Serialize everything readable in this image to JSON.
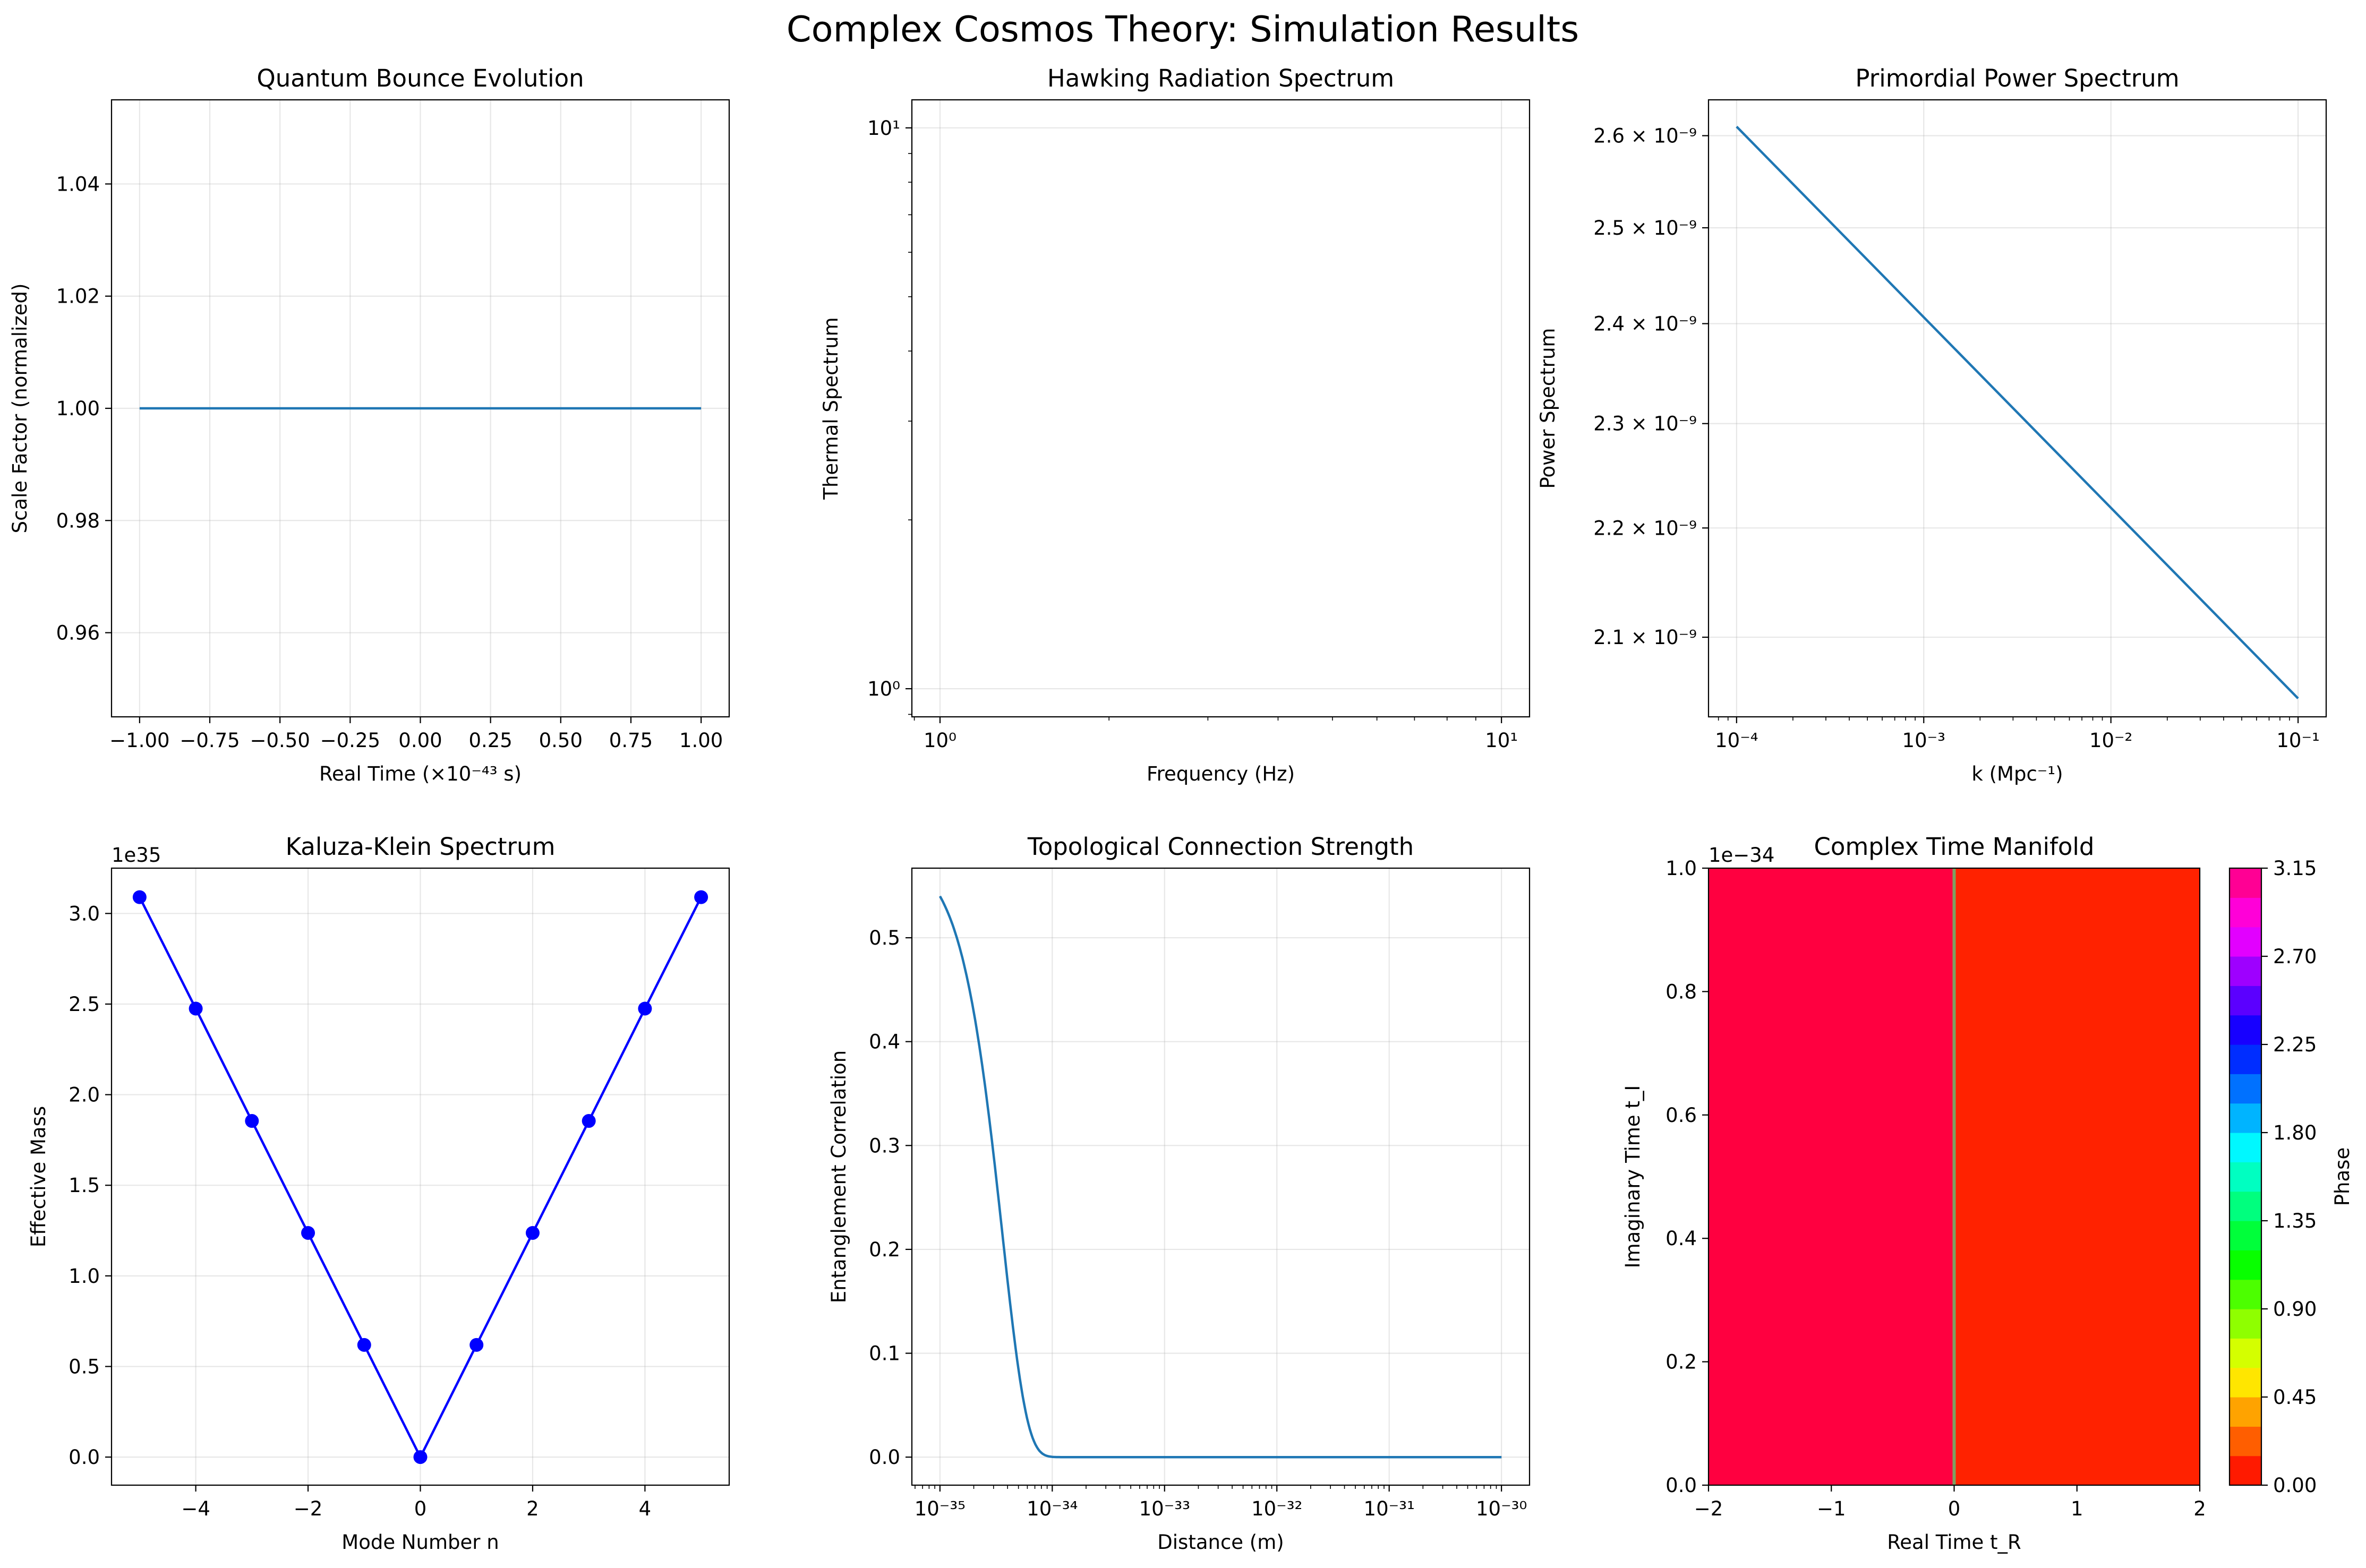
{
  "figure_title": "Complex Cosmos Theory: Simulation Results",
  "colors": {
    "line": "#1f77b4",
    "markers": "#0000ff",
    "grid": "#b0b0b0"
  },
  "chart_data": [
    {
      "type": "line",
      "title": "Quantum Bounce Evolution",
      "xlabel": "Real Time (×10⁻⁴³ s)",
      "ylabel": "Scale Factor (normalized)",
      "xlim": [
        -1.1,
        1.1
      ],
      "ylim": [
        0.945,
        1.055
      ],
      "xticks": [
        -1.0,
        -0.75,
        -0.5,
        -0.25,
        0.0,
        0.25,
        0.5,
        0.75,
        1.0
      ],
      "xtick_labels": [
        "−1.00",
        "−0.75",
        "−0.50",
        "−0.25",
        "0.00",
        "0.25",
        "0.50",
        "0.75",
        "1.00"
      ],
      "yticks": [
        0.96,
        0.98,
        1.0,
        1.02,
        1.04
      ],
      "ytick_labels": [
        "0.96",
        "0.98",
        "1.00",
        "1.02",
        "1.04"
      ],
      "grid": true,
      "series": [
        {
          "x": [
            -1.0,
            1.0
          ],
          "y": [
            1.0,
            1.0
          ]
        }
      ]
    },
    {
      "type": "line",
      "title": "Hawking Radiation Spectrum",
      "xlabel": "Frequency (Hz)",
      "ylabel": "Thermal Spectrum",
      "xscale": "log",
      "yscale": "log",
      "xlim": [
        0.891,
        11.22
      ],
      "ylim": [
        0.891,
        11.22
      ],
      "xticks": [
        1,
        10
      ],
      "xtick_labels": [
        "10⁰",
        "10¹"
      ],
      "yticks": [
        1,
        10
      ],
      "ytick_labels": [
        "10⁰",
        "10¹"
      ],
      "grid": true,
      "series": []
    },
    {
      "type": "line",
      "title": "Primordial Power Spectrum",
      "xlabel": "k (Mpc⁻¹)",
      "ylabel": "Power Spectrum",
      "xscale": "log",
      "yscale": "log",
      "xlim": [
        7.08e-05,
        0.1413
      ],
      "ylim": [
        2.03e-09,
        2.64e-09
      ],
      "xticks": [
        0.0001,
        0.001,
        0.01,
        0.1
      ],
      "xtick_labels": [
        "10⁻⁴",
        "10⁻³",
        "10⁻²",
        "10⁻¹"
      ],
      "yticks": [
        2.1e-09,
        2.2e-09,
        2.3e-09,
        2.4e-09,
        2.5e-09,
        2.6e-09
      ],
      "ytick_labels": [
        "2.1 × 10⁻⁹",
        "2.2 × 10⁻⁹",
        "2.3 × 10⁻⁹",
        "2.4 × 10⁻⁹",
        "2.5 × 10⁻⁹",
        "2.6 × 10⁻⁹"
      ],
      "grid": true,
      "series": [
        {
          "x": [
            0.0001,
            0.1
          ],
          "y": [
            2.61e-09,
            2.046e-09
          ]
        }
      ]
    },
    {
      "type": "line",
      "title": "Kaluza-Klein Spectrum",
      "xlabel": "Mode Number n",
      "ylabel": "Effective Mass",
      "offset_label": "1e35",
      "xlim": [
        -5.5,
        5.5
      ],
      "ylim": [
        -0.155,
        3.25
      ],
      "xticks": [
        -4,
        -2,
        0,
        2,
        4
      ],
      "xtick_labels": [
        "−4",
        "−2",
        "0",
        "2",
        "4"
      ],
      "yticks": [
        0.0,
        0.5,
        1.0,
        1.5,
        2.0,
        2.5,
        3.0
      ],
      "ytick_labels": [
        "0.0",
        "0.5",
        "1.0",
        "1.5",
        "2.0",
        "2.5",
        "3.0"
      ],
      "grid": true,
      "series": [
        {
          "x": [
            -5,
            -4,
            -3,
            -2,
            -1,
            0,
            1,
            2,
            3,
            4,
            5
          ],
          "y": [
            3.09,
            2.475,
            1.855,
            1.237,
            0.619,
            0.0,
            0.619,
            1.237,
            1.855,
            2.475,
            3.09
          ],
          "markers": true
        }
      ]
    },
    {
      "type": "line",
      "title": "Topological Connection Strength",
      "xlabel": "Distance (m)",
      "ylabel": "Entanglement Correlation",
      "xscale": "log",
      "xlim": [
        5.623e-36,
        1.778e-30
      ],
      "ylim": [
        -0.027,
        0.567
      ],
      "xticks": [
        1e-35,
        1e-34,
        1e-33,
        1e-32,
        1e-31,
        1e-30
      ],
      "xtick_labels": [
        "10⁻³⁵",
        "10⁻³⁴",
        "10⁻³³",
        "10⁻³²",
        "10⁻³¹",
        "10⁻³⁰"
      ],
      "yticks": [
        0.0,
        0.1,
        0.2,
        0.3,
        0.4,
        0.5
      ],
      "ytick_labels": [
        "0.0",
        "0.1",
        "0.2",
        "0.3",
        "0.4",
        "0.5"
      ],
      "grid": true,
      "series": [
        {
          "x": [
            1e-35,
            1.2e-35,
            1.5e-35,
            2e-35,
            2.5e-35,
            3e-35,
            4e-35,
            5e-35,
            6e-35,
            7e-35,
            8e-35,
            1e-34,
            1.5e-34,
            1e-33,
            1e-32,
            1e-31,
            1e-30
          ],
          "y": [
            0.54,
            0.49,
            0.42,
            0.315,
            0.225,
            0.155,
            0.07,
            0.03,
            0.012,
            0.005,
            0.002,
            0.0003,
            0.0,
            0.0,
            0.0,
            0.0,
            0.0
          ]
        }
      ]
    },
    {
      "type": "heatmap",
      "title": "Complex Time Manifold",
      "xlabel": "Real Time t_R",
      "ylabel": "Imaginary Time t_I",
      "offset_label": "1e−34",
      "xlim": [
        -2,
        2
      ],
      "ylim": [
        0.0,
        1.0
      ],
      "xticks": [
        -2,
        -1,
        0,
        1,
        2
      ],
      "xtick_labels": [
        "−2",
        "−1",
        "0",
        "1",
        "2"
      ],
      "yticks": [
        0.0,
        0.2,
        0.4,
        0.6,
        0.8,
        1.0
      ],
      "ytick_labels": [
        "0.0",
        "0.2",
        "0.4",
        "0.6",
        "0.8",
        "1.0"
      ],
      "regions": [
        {
          "x_from": -2,
          "x_to": 0,
          "phase": 3.14,
          "color": "#ff0040"
        },
        {
          "x_from": 0,
          "x_to": 2,
          "phase": 0.0,
          "color": "#ff2200"
        }
      ],
      "boundary_x": 0,
      "boundary_color": "#7fa060",
      "colorbar": {
        "label": "Phase",
        "min": 0.0,
        "max": 3.15,
        "ticks": [
          0.0,
          0.45,
          0.9,
          1.35,
          1.8,
          2.25,
          2.7,
          3.15
        ],
        "tick_labels": [
          "0.00",
          "0.45",
          "0.90",
          "1.35",
          "1.80",
          "2.25",
          "2.70",
          "3.15"
        ],
        "colors": [
          "#ff1a00",
          "#ff5e00",
          "#ffa300",
          "#ffe600",
          "#d4ff00",
          "#8fff00",
          "#4cff00",
          "#08ff00",
          "#00ff3a",
          "#00ff7e",
          "#00ffc1",
          "#00f8ff",
          "#00b4ff",
          "#0071ff",
          "#002dff",
          "#1700ff",
          "#5b00ff",
          "#9e00ff",
          "#e200ff",
          "#ff00d8",
          "#ff0094"
        ]
      }
    }
  ]
}
